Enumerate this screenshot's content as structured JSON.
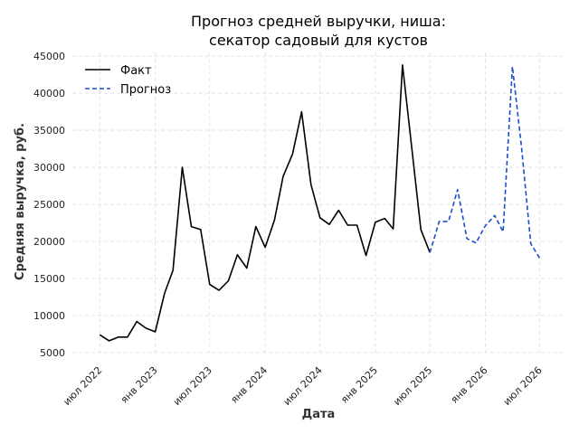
{
  "chart_data": {
    "type": "line",
    "title_lines": [
      "Прогноз средней выручки, ниша:",
      "секатор садовый для кустов"
    ],
    "xlabel": "Дата",
    "ylabel": "Средняя выручка, руб.",
    "ylim": [
      5000,
      45500
    ],
    "yticks": [
      5000,
      10000,
      15000,
      20000,
      25000,
      30000,
      35000,
      40000,
      45000
    ],
    "xlim": [
      "2022-04-01",
      "2026-09-15"
    ],
    "xticks": [
      {
        "date": "2022-07-01",
        "label": "июл 2022"
      },
      {
        "date": "2023-01-01",
        "label": "янв 2023"
      },
      {
        "date": "2023-07-01",
        "label": "июл 2023"
      },
      {
        "date": "2024-01-01",
        "label": "янв 2024"
      },
      {
        "date": "2024-07-01",
        "label": "июл 2024"
      },
      {
        "date": "2025-01-01",
        "label": "янв 2025"
      },
      {
        "date": "2025-07-01",
        "label": "июл 2025"
      },
      {
        "date": "2026-01-01",
        "label": "янв 2026"
      },
      {
        "date": "2026-07-01",
        "label": "июл 2026"
      }
    ],
    "grid": true,
    "legend_position": "top-left",
    "series": [
      {
        "name": "Факт",
        "color": "#000000",
        "style": "solid",
        "points": [
          [
            "2022-07-01",
            7400
          ],
          [
            "2022-08-01",
            6600
          ],
          [
            "2022-09-01",
            7100
          ],
          [
            "2022-10-01",
            7100
          ],
          [
            "2022-11-01",
            9200
          ],
          [
            "2022-12-01",
            8300
          ],
          [
            "2023-01-01",
            7800
          ],
          [
            "2023-02-01",
            13000
          ],
          [
            "2023-03-01",
            16100
          ],
          [
            "2023-04-01",
            30000
          ],
          [
            "2023-05-01",
            22000
          ],
          [
            "2023-06-01",
            21600
          ],
          [
            "2023-07-01",
            14200
          ],
          [
            "2023-08-01",
            13400
          ],
          [
            "2023-09-01",
            14700
          ],
          [
            "2023-10-01",
            18200
          ],
          [
            "2023-11-01",
            16400
          ],
          [
            "2023-12-01",
            22000
          ],
          [
            "2024-01-01",
            19200
          ],
          [
            "2024-02-01",
            22900
          ],
          [
            "2024-03-01",
            28800
          ],
          [
            "2024-04-01",
            31800
          ],
          [
            "2024-05-01",
            37500
          ],
          [
            "2024-06-01",
            27700
          ],
          [
            "2024-07-01",
            23200
          ],
          [
            "2024-08-01",
            22300
          ],
          [
            "2024-09-01",
            24200
          ],
          [
            "2024-10-01",
            22200
          ],
          [
            "2024-11-01",
            22200
          ],
          [
            "2024-12-01",
            18100
          ],
          [
            "2025-01-01",
            22600
          ],
          [
            "2025-02-01",
            23100
          ],
          [
            "2025-03-01",
            21700
          ],
          [
            "2025-04-01",
            43800
          ],
          [
            "2025-05-01",
            32900
          ],
          [
            "2025-06-01",
            21600
          ],
          [
            "2025-07-01",
            18500
          ]
        ]
      },
      {
        "name": "Прогноз",
        "color": "#1a4fcc",
        "style": "dashed",
        "points": [
          [
            "2025-07-01",
            18500
          ],
          [
            "2025-08-01",
            22700
          ],
          [
            "2025-09-01",
            22700
          ],
          [
            "2025-10-01",
            27000
          ],
          [
            "2025-11-01",
            20400
          ],
          [
            "2025-12-01",
            19800
          ],
          [
            "2026-01-01",
            22100
          ],
          [
            "2026-02-01",
            23500
          ],
          [
            "2026-03-01",
            21300
          ],
          [
            "2026-04-01",
            43600
          ],
          [
            "2026-05-01",
            32800
          ],
          [
            "2026-06-01",
            19700
          ],
          [
            "2026-07-01",
            17700
          ]
        ]
      }
    ]
  }
}
